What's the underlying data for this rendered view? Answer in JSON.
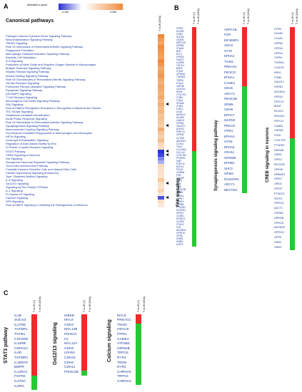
{
  "panelA": {
    "letter": "A",
    "legend_title": "Activation z-score",
    "legend_min": "-2.442",
    "legend_max": "4.426",
    "title": "Canonical pathways",
    "column_label": "T vs W (DHA)",
    "pathways": [
      "Pathogen Induced Cytokine Storm Signaling Pathway",
      "Neuroinflammation Signaling Pathway",
      "TREM1 Signaling",
      "Role Of Osteoclasts In Rheumatoid Arthritis Signaling Pathway",
      "Phagosome Formation",
      "Macrophage Classical Activation Signaling Pathway",
      "Dendritic Cell Maturation",
      "IL-8 Signaling",
      "Production of Nitric Oxide and Reactive Oxygen Species in Macrophages",
      "Multiple Sclerosis Signaling Pathway",
      "Hepatic Fibrosis Signaling Pathway",
      "Wound Healing Signaling Pathway",
      "Role Of Chondrocytes in Rheumatoid Arthritis Signaling Pathway",
      "Toll-like Receptor Signaling",
      "Pulmonary Fibrosis Idiopathic Signaling Pathway",
      "Pyroptosis Signaling Pathway",
      "p38 MAPK Signaling",
      "T Cell Receptor Signaling",
      "Immunogenic Cell Death Signaling Pathway",
      "FAK Signaling",
      "Role of Pattern Recognition Receptors in Recognition of Bacteria and Viruses",
      "TEC Kinase Signaling",
      "Glutathione-mediated Detoxification",
      "Acute Phase Response Signaling",
      "Role Of Osteoblasts In Rheumatoid Arthritis Signaling Pathway",
      "Synaptogenesis Signaling Pathway",
      "Neurovascular Coupling Signaling Pathway",
      "Fcγ Receptor-mediated Phagocytosis in Macrophages and Monocytes",
      "HIF1α Signaling",
      "Leukocyte Extravasation Signaling",
      "Regulation of Actin-based Motility by Rho",
      "G-Protein Coupled Receptor Signaling",
      "STAT3 Pathway",
      "CREB Signaling in Neurons",
      "Gαi Signaling",
      "Semaphorin Neuronal Repulsive Signaling Pathway",
      "Tumor Microenvironment Pathway",
      "Crosstalk between Dendritic Cells and Natural Killer Cells",
      "Cardiac Hypertrophy Signaling (Enhanced)",
      "Type I Diabetes Mellitus Signaling",
      "IL-6 Signaling",
      "Gα12/13 Signaling",
      "Signaling by Rho Family GTPases",
      "IL-1 Signaling",
      "Fc Epsilon RI Signaling",
      "Calcium Signaling",
      "GP6 Signaling",
      "Role of MAPK Signaling in Inhibiting the Pathogenesis of Influenza"
    ],
    "zscore_colors": [
      "#f08a3c",
      "#f39a52",
      "#f5a764",
      "#f08d40",
      "#f29650",
      "#f39c56",
      "#f4a35e",
      "#f08b3f",
      "#f2974f",
      "#f5aa6a",
      "#f3a05a",
      "#f29650",
      "#f5a866",
      "#f6b277",
      "#f4a462",
      "#f5ac6e",
      "#f6b47a",
      "#f4a866",
      "#f7bb86",
      "#f5ad70",
      "#f7be8c",
      "#f6b67e",
      "#f8c394",
      "#f7c092",
      "#f8c89c",
      "#f9cfa8",
      "#f5ae72",
      "#f8c598",
      "#f9d0aa",
      "#f7bf8e",
      "#fad8b8",
      "#fadbbe",
      "#2b32d4",
      "#3a44e0",
      "#7f88ec",
      "#a9b0f2",
      "#fbdcc0",
      "#fcdfc5",
      "#fbe1ca",
      "#fce4cf",
      "#f8c89c",
      "#fbdfc4",
      "#fce4cf",
      "#f9d4b0",
      "#fde7d6",
      "#4a55e2",
      "#fbe0c6",
      "#fde9d9"
    ],
    "arrow_rows": [
      19,
      25,
      32,
      33,
      41,
      45
    ]
  },
  "panelB": {
    "letter": "B",
    "col1": "T vs W (V)",
    "col2": "T vs W (DHA)",
    "fak": {
      "title": "FAK signaling",
      "genes": [
        "ITPR3",
        "HCAR2",
        "ITGB7",
        "SOCS3",
        "CSAR1",
        "ARPC1B",
        "GPR65",
        "ITGAM",
        "BCR",
        "ELF4",
        "GPR18",
        "FADP3",
        "IL10RB",
        "TGF1L1",
        "BDNF",
        "ITGA5",
        "GPR160",
        "TGFBR1",
        "TGFB1",
        "ITGAX",
        "CAPN6",
        "CX3CR1",
        "HRH1",
        "CYSLTR1",
        "ITGB2",
        "ITGA4",
        "GP1BA",
        "ITGB3",
        "F2RL2",
        "CD16",
        "MAPK12",
        "HCAR3",
        "CAMLG",
        "GPR62",
        "GALNT1",
        "ACKR2",
        "P2RY13",
        "GPR34",
        "IL17RB",
        "ADORA1",
        "CCRL2",
        "TSH2",
        "COL18A1",
        "CXCL12",
        "CYSLTR2",
        "PTGER1",
        "IL6R",
        "P2RY12",
        "BCRL2",
        "PI3CD",
        "CHRM4",
        "FGR",
        "IL1RAP",
        "FGF2",
        "SOX",
        "PI3K",
        "PIK3C2B",
        "GRM5",
        "NFKB1",
        "GPR17",
        "GPR19",
        "GPR84",
        "PTGDR1",
        "HCRTR1",
        "GPR27",
        "CCND1",
        "GPR101",
        "IL12RA",
        "ITGA11",
        "F2D",
        "ADORA3",
        "GPR132",
        "GPR6",
        "GRM3",
        "GNRH",
        "IL2RG"
      ],
      "split": 43
    },
    "syn": {
      "title": "Synaptogenesis signaling pathway",
      "genes": [
        "ARPC1B",
        "FGR",
        "EIF4EBP1",
        "CDH3",
        "SYT6",
        "EPHA4",
        "TIAM1",
        "PRKAG1",
        "PIK3CG",
        "EFNA1",
        "CAMK4",
        "CDH6",
        "ADCY3",
        "PIK3C2B",
        "GRM5",
        "CDH9",
        "EPHA7",
        "MAP1B",
        "PRKCD",
        "ITPR1",
        "EPHA3",
        "SYN3",
        "EPHA6",
        "CDH11",
        "GRIN2B",
        "EPHB2",
        "SHC3",
        "GRM3",
        "RASGRP1",
        "ADCY1",
        "NECTIN1"
      ],
      "split": 11
    },
    "creb": {
      "title": "CREB signaling in neurons",
      "genes": [
        "ITPR3",
        "HCAR2",
        "CCAR1",
        "GPR65",
        "GPR18",
        "GPR15",
        "TGFB1",
        "TGFBR1",
        "CX3CR1",
        "HRH1",
        "ITGB2",
        "GALNT1",
        "GPR84",
        "ADORA3",
        "GPR34",
        "P2RY13",
        "BDNF",
        "PIK3CG",
        "PRKAG1",
        "P2RY12",
        "CAMK4",
        "CHRM2",
        "FZD6",
        "CYSLTR2",
        "PTGER3",
        "GRIN2B",
        "GRM5",
        "GPR17",
        "PIK3C2B",
        "GPR45",
        "NPBWR1",
        "GPR17",
        "GRID2",
        "GPR27",
        "PTGDR1",
        "SSTR1",
        "GPR101",
        "ADCY1",
        "CHRM2",
        "GRIN2B",
        "GPR151",
        "ADORA3",
        "GPR132",
        "GPR6",
        "GRM1",
        "GRM3"
      ],
      "split": 23
    }
  },
  "panelC": {
    "letter": "C",
    "col1": "T vs W (V)",
    "col2": "T vs W (DHA)",
    "stat3": {
      "title": "STAT3 pathway",
      "genes": [
        "IL1B",
        "SOCS3",
        "IL17RE",
        "TGFBR1",
        "TGFB1",
        "CSF2RB",
        "IL10RB",
        "CDKN1A",
        "IL4R",
        "TGFBR2",
        "IL18RAP",
        "BMPR",
        "IL13RA1",
        "FGFR2",
        "IL27RA",
        "IL2RG"
      ],
      "split": 13
    },
    "gna": {
      "title": "Gα12/13 signaling",
      "genes": [
        "IKBKE",
        "MYL9",
        "CDH3",
        "MYL12B",
        "PIK3CG",
        "F2",
        "MYL12A",
        "CDH9",
        "LPAR4",
        "CDH23",
        "CDH6",
        "CDH11",
        "PIK3C2B"
      ],
      "split": 12
    },
    "calc": {
      "title": "Calcium signaling",
      "genes": [
        "MYL9",
        "PRKAG1",
        "TNNI2",
        "HDAC9",
        "ITPR1",
        "CAMK4",
        "ATP2B3",
        "GRIN2B",
        "TRPC6",
        "RYR1",
        "TRDN",
        "RYR2",
        "CHRNA5",
        "TRPC5",
        "CHRNA2"
      ],
      "split": 2
    }
  }
}
